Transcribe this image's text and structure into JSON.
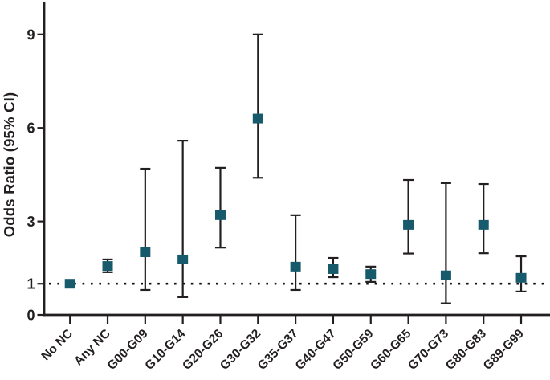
{
  "chart_data": {
    "type": "scatter",
    "variant": "forest_plot_error_bars",
    "title": "",
    "xlabel": "",
    "ylabel": "Odds Ratio (95% CI)",
    "ylim": [
      0,
      10
    ],
    "yticks": [
      0,
      1,
      3,
      6,
      9
    ],
    "reference_line_y": 1,
    "grid": false,
    "legend_position": "none",
    "categories": [
      "No NC",
      "Any NC",
      "G00-G09",
      "G10-G14",
      "G20-G26",
      "G30-G32",
      "G35-G37",
      "G40-G47",
      "G50-G59",
      "G60-G65",
      "G70-G73",
      "G80-G83",
      "G89-G99"
    ],
    "series": [
      {
        "name": "Odds Ratio (95% CI)",
        "marker": "square",
        "points": [
          {
            "label": "No NC",
            "odds_ratio": 1.0,
            "ci_low": null,
            "ci_high": null
          },
          {
            "label": "Any NC",
            "odds_ratio": 1.57,
            "ci_low": 1.37,
            "ci_high": 1.78
          },
          {
            "label": "G00-G09",
            "odds_ratio": 2.01,
            "ci_low": 0.8,
            "ci_high": 4.69
          },
          {
            "label": "G10-G14",
            "odds_ratio": 1.78,
            "ci_low": 0.57,
            "ci_high": 5.59
          },
          {
            "label": "G20-G26",
            "odds_ratio": 3.2,
            "ci_low": 2.16,
            "ci_high": 4.72
          },
          {
            "label": "G30-G32",
            "odds_ratio": 6.3,
            "ci_low": 4.4,
            "ci_high": 9.0
          },
          {
            "label": "G35-G37",
            "odds_ratio": 1.55,
            "ci_low": 0.8,
            "ci_high": 3.2
          },
          {
            "label": "G40-G47",
            "odds_ratio": 1.47,
            "ci_low": 1.21,
            "ci_high": 1.83
          },
          {
            "label": "G50-G59",
            "odds_ratio": 1.31,
            "ci_low": 1.06,
            "ci_high": 1.55
          },
          {
            "label": "G60-G65",
            "odds_ratio": 2.89,
            "ci_low": 1.97,
            "ci_high": 4.33
          },
          {
            "label": "G70-G73",
            "odds_ratio": 1.27,
            "ci_low": 0.37,
            "ci_high": 4.23
          },
          {
            "label": "G80-G83",
            "odds_ratio": 2.89,
            "ci_low": 1.98,
            "ci_high": 4.2
          },
          {
            "label": "G89-G99",
            "odds_ratio": 1.19,
            "ci_low": 0.75,
            "ci_high": 1.88
          }
        ]
      }
    ],
    "colors": {
      "marker": "#165A6B",
      "axis": "#231F20",
      "text": "#231F20",
      "reference_line": "#111111",
      "background": "#FFFFFF"
    }
  }
}
